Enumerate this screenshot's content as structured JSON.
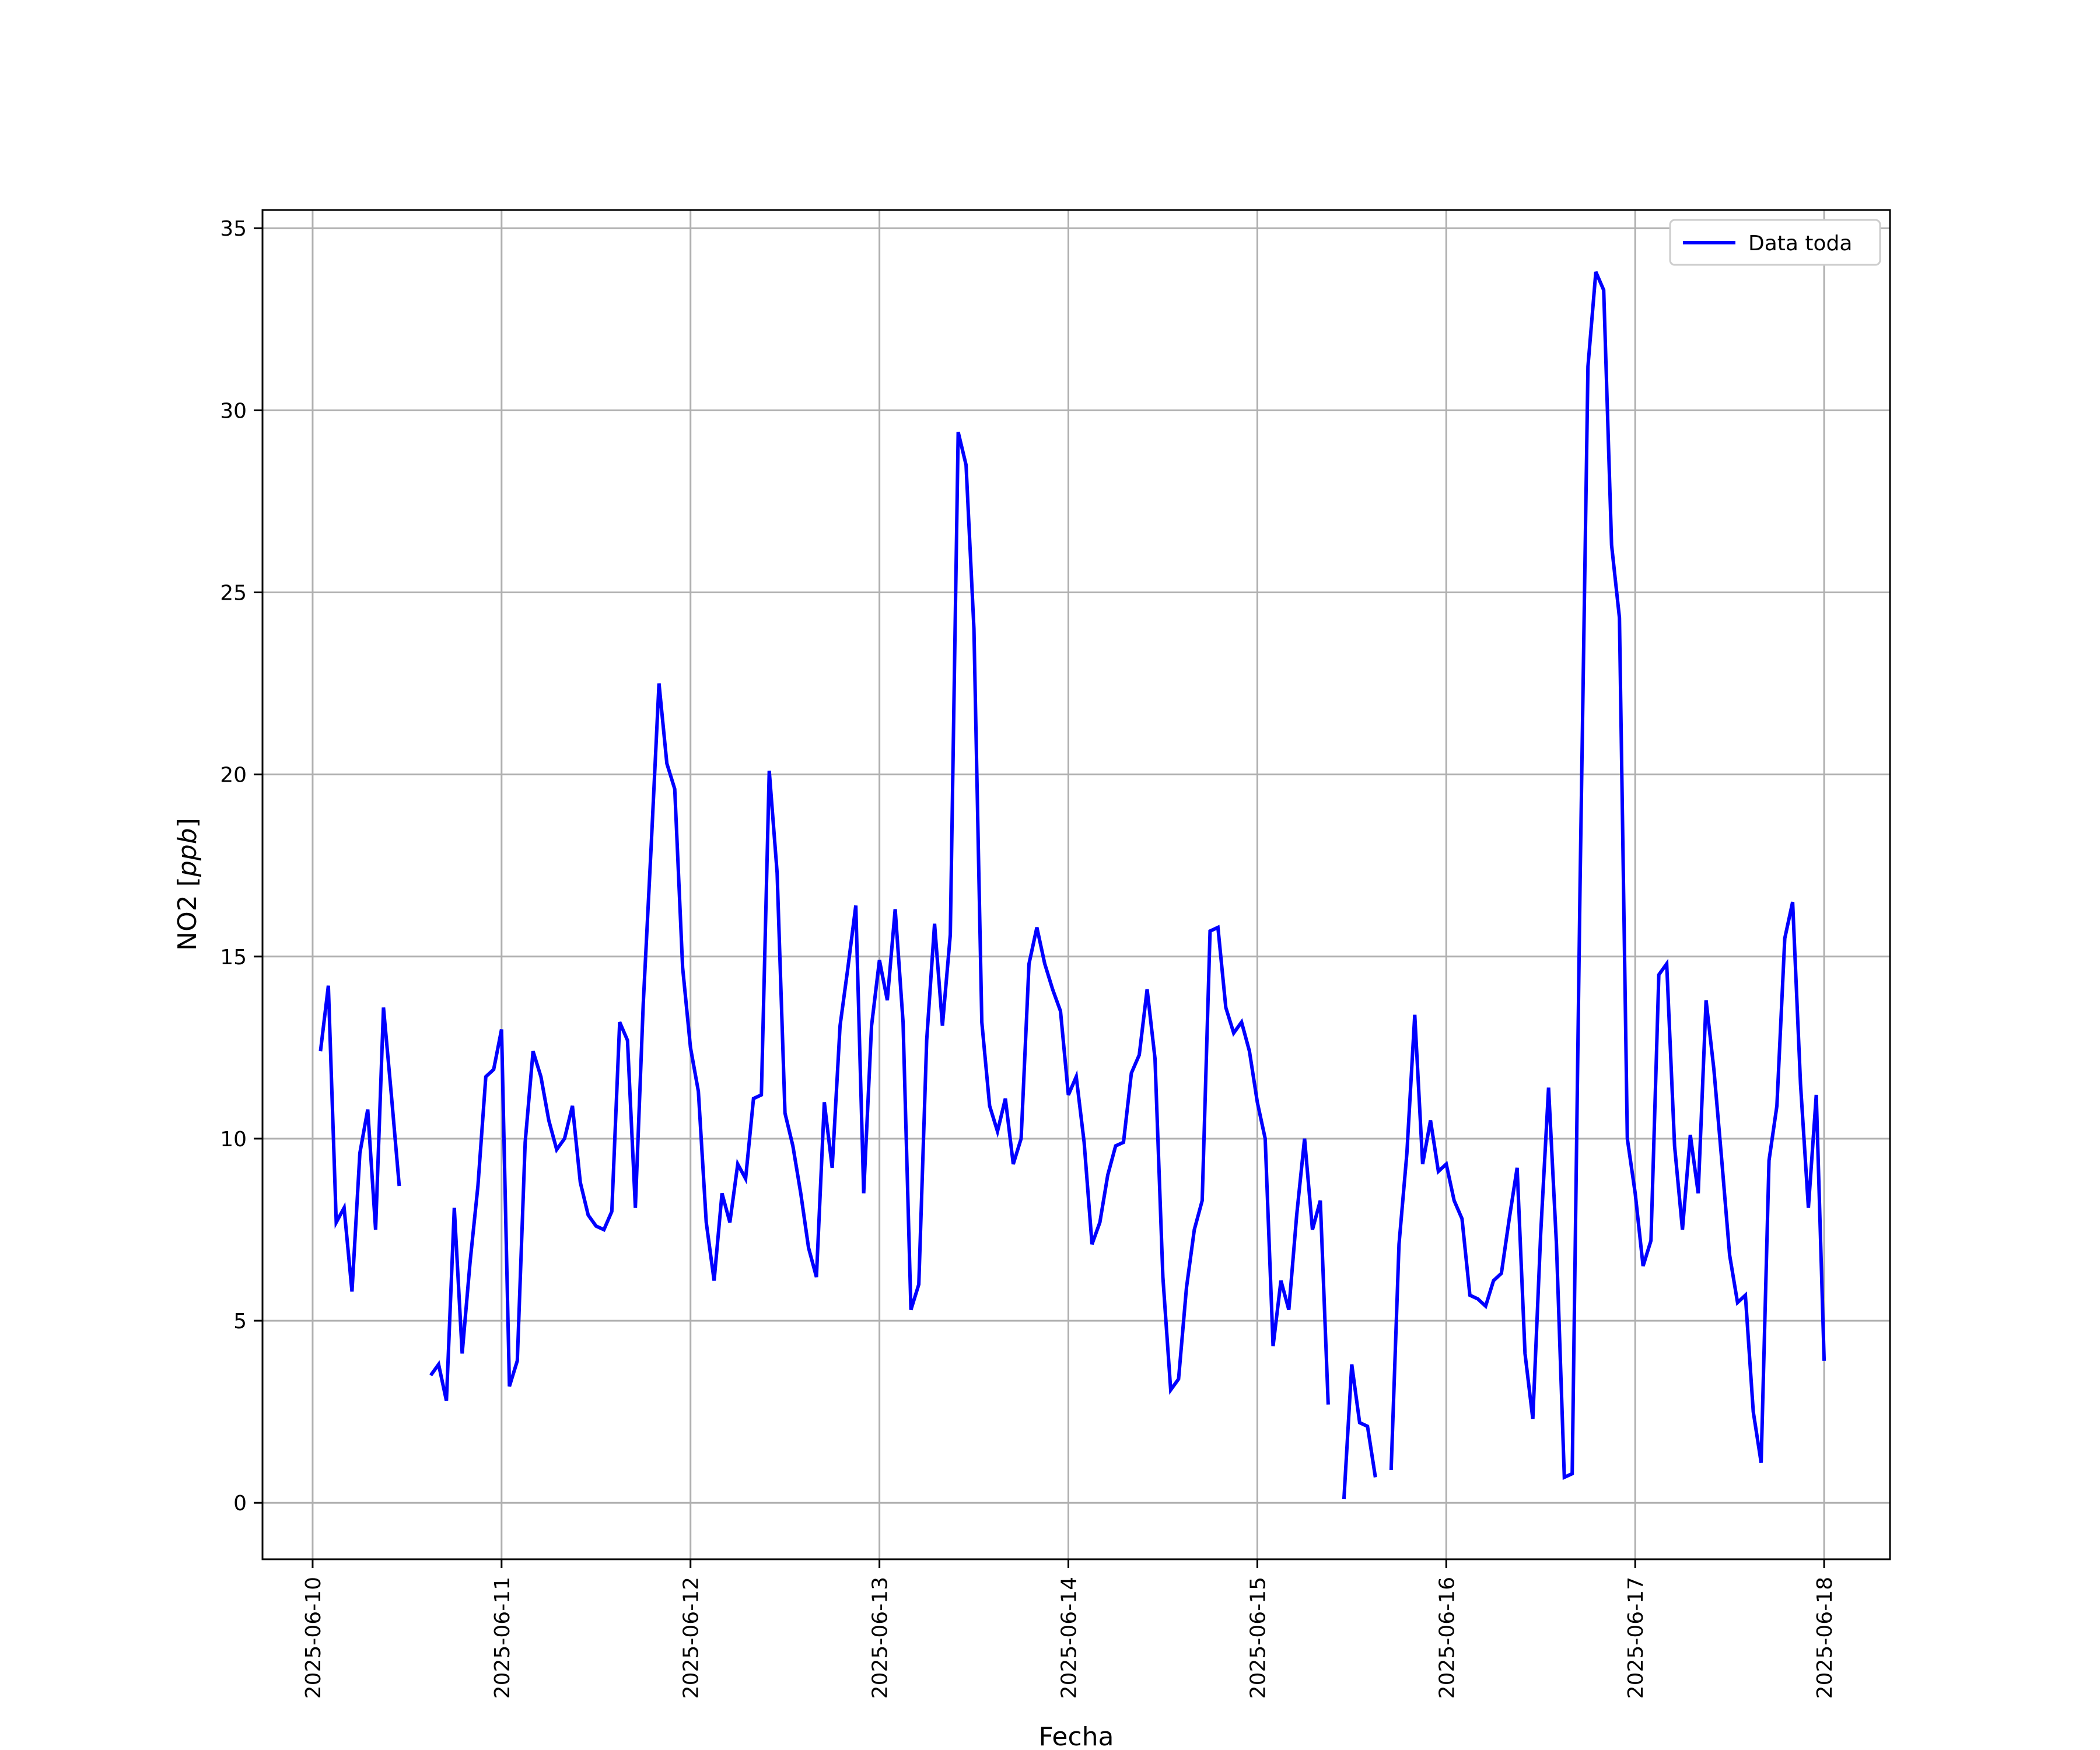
{
  "chart_data": {
    "type": "line",
    "title": "",
    "xlabel": "Fecha",
    "ylabel": "NO2 [ppb]",
    "ylabel_prefix": "NO2 [",
    "ylabel_unit": "ppb",
    "ylabel_suffix": "]",
    "xlim": [
      "2025-06-09T17:38",
      "2025-06-18T08:22"
    ],
    "ylim": [
      -1.55,
      35.5
    ],
    "grid": true,
    "legend_position": "upper-right",
    "x_ticks": [
      "2025-06-10",
      "2025-06-11",
      "2025-06-12",
      "2025-06-13",
      "2025-06-14",
      "2025-06-15",
      "2025-06-16",
      "2025-06-17",
      "2025-06-18"
    ],
    "y_ticks": [
      0,
      5,
      10,
      15,
      20,
      25,
      30,
      35
    ],
    "y_tick_labels": [
      "0",
      "5",
      "10",
      "15",
      "20",
      "25",
      "30",
      "35"
    ],
    "colors": {
      "series": "#0000ff",
      "grid": "#b0b0b0",
      "axes": "#000000"
    },
    "series": [
      {
        "name": "Data toda",
        "color": "#0000ff",
        "points": [
          [
            "2025-06-10T01:00",
            12.4
          ],
          [
            "2025-06-10T02:00",
            14.2
          ],
          [
            "2025-06-10T03:00",
            7.7
          ],
          [
            "2025-06-10T04:00",
            8.1
          ],
          [
            "2025-06-10T05:00",
            5.8
          ],
          [
            "2025-06-10T06:00",
            9.6
          ],
          [
            "2025-06-10T07:00",
            10.8
          ],
          [
            "2025-06-10T08:00",
            7.5
          ],
          [
            "2025-06-10T09:00",
            13.6
          ],
          [
            "2025-06-10T10:00",
            11.2
          ],
          [
            "2025-06-10T11:00",
            8.7
          ],
          [
            "2025-06-10T12:00",
            null
          ],
          [
            "2025-06-10T13:00",
            null
          ],
          [
            "2025-06-10T14:00",
            null
          ],
          [
            "2025-06-10T15:00",
            3.5
          ],
          [
            "2025-06-10T16:00",
            3.8
          ],
          [
            "2025-06-10T17:00",
            2.8
          ],
          [
            "2025-06-10T18:00",
            8.1
          ],
          [
            "2025-06-10T19:00",
            4.1
          ],
          [
            "2025-06-10T20:00",
            6.6
          ],
          [
            "2025-06-10T21:00",
            8.7
          ],
          [
            "2025-06-10T22:00",
            11.7
          ],
          [
            "2025-06-10T23:00",
            11.9
          ],
          [
            "2025-06-11T00:00",
            13.0
          ],
          [
            "2025-06-11T01:00",
            3.2
          ],
          [
            "2025-06-11T02:00",
            3.9
          ],
          [
            "2025-06-11T03:00",
            9.9
          ],
          [
            "2025-06-11T04:00",
            12.4
          ],
          [
            "2025-06-11T05:00",
            11.7
          ],
          [
            "2025-06-11T06:00",
            10.5
          ],
          [
            "2025-06-11T07:00",
            9.7
          ],
          [
            "2025-06-11T08:00",
            10.0
          ],
          [
            "2025-06-11T09:00",
            10.9
          ],
          [
            "2025-06-11T10:00",
            8.8
          ],
          [
            "2025-06-11T11:00",
            7.9
          ],
          [
            "2025-06-11T12:00",
            7.6
          ],
          [
            "2025-06-11T13:00",
            7.5
          ],
          [
            "2025-06-11T14:00",
            8.0
          ],
          [
            "2025-06-11T15:00",
            13.2
          ],
          [
            "2025-06-11T16:00",
            12.7
          ],
          [
            "2025-06-11T17:00",
            8.1
          ],
          [
            "2025-06-11T18:00",
            13.7
          ],
          [
            "2025-06-11T19:00",
            18.0
          ],
          [
            "2025-06-11T20:00",
            22.5
          ],
          [
            "2025-06-11T21:00",
            20.3
          ],
          [
            "2025-06-11T22:00",
            19.6
          ],
          [
            "2025-06-11T23:00",
            14.7
          ],
          [
            "2025-06-12T00:00",
            12.5
          ],
          [
            "2025-06-12T01:00",
            11.3
          ],
          [
            "2025-06-12T02:00",
            7.7
          ],
          [
            "2025-06-12T03:00",
            6.1
          ],
          [
            "2025-06-12T04:00",
            8.5
          ],
          [
            "2025-06-12T05:00",
            7.7
          ],
          [
            "2025-06-12T06:00",
            9.3
          ],
          [
            "2025-06-12T07:00",
            8.9
          ],
          [
            "2025-06-12T08:00",
            11.1
          ],
          [
            "2025-06-12T09:00",
            11.2
          ],
          [
            "2025-06-12T10:00",
            20.1
          ],
          [
            "2025-06-12T11:00",
            17.3
          ],
          [
            "2025-06-12T12:00",
            10.7
          ],
          [
            "2025-06-12T13:00",
            9.8
          ],
          [
            "2025-06-12T14:00",
            8.5
          ],
          [
            "2025-06-12T15:00",
            7.0
          ],
          [
            "2025-06-12T16:00",
            6.2
          ],
          [
            "2025-06-12T17:00",
            11.0
          ],
          [
            "2025-06-12T18:00",
            9.2
          ],
          [
            "2025-06-12T19:00",
            13.1
          ],
          [
            "2025-06-12T20:00",
            14.7
          ],
          [
            "2025-06-12T21:00",
            16.4
          ],
          [
            "2025-06-12T22:00",
            8.5
          ],
          [
            "2025-06-12T23:00",
            13.1
          ],
          [
            "2025-06-13T00:00",
            14.9
          ],
          [
            "2025-06-13T01:00",
            13.8
          ],
          [
            "2025-06-13T02:00",
            16.3
          ],
          [
            "2025-06-13T03:00",
            13.2
          ],
          [
            "2025-06-13T04:00",
            5.3
          ],
          [
            "2025-06-13T05:00",
            6.0
          ],
          [
            "2025-06-13T06:00",
            12.7
          ],
          [
            "2025-06-13T07:00",
            15.9
          ],
          [
            "2025-06-13T08:00",
            13.1
          ],
          [
            "2025-06-13T09:00",
            15.6
          ],
          [
            "2025-06-13T10:00",
            29.4
          ],
          [
            "2025-06-13T11:00",
            28.5
          ],
          [
            "2025-06-13T12:00",
            24.0
          ],
          [
            "2025-06-13T13:00",
            13.2
          ],
          [
            "2025-06-13T14:00",
            10.9
          ],
          [
            "2025-06-13T15:00",
            10.2
          ],
          [
            "2025-06-13T16:00",
            11.1
          ],
          [
            "2025-06-13T17:00",
            9.3
          ],
          [
            "2025-06-13T18:00",
            10.0
          ],
          [
            "2025-06-13T19:00",
            14.8
          ],
          [
            "2025-06-13T20:00",
            15.8
          ],
          [
            "2025-06-13T21:00",
            14.8
          ],
          [
            "2025-06-13T22:00",
            14.1
          ],
          [
            "2025-06-13T23:00",
            13.5
          ],
          [
            "2025-06-14T00:00",
            11.2
          ],
          [
            "2025-06-14T01:00",
            11.7
          ],
          [
            "2025-06-14T02:00",
            9.9
          ],
          [
            "2025-06-14T03:00",
            7.1
          ],
          [
            "2025-06-14T04:00",
            7.7
          ],
          [
            "2025-06-14T05:00",
            9.0
          ],
          [
            "2025-06-14T06:00",
            9.8
          ],
          [
            "2025-06-14T07:00",
            9.9
          ],
          [
            "2025-06-14T08:00",
            11.8
          ],
          [
            "2025-06-14T09:00",
            12.3
          ],
          [
            "2025-06-14T10:00",
            14.1
          ],
          [
            "2025-06-14T11:00",
            12.2
          ],
          [
            "2025-06-14T12:00",
            6.2
          ],
          [
            "2025-06-14T13:00",
            3.1
          ],
          [
            "2025-06-14T14:00",
            3.4
          ],
          [
            "2025-06-14T15:00",
            5.9
          ],
          [
            "2025-06-14T16:00",
            7.5
          ],
          [
            "2025-06-14T17:00",
            8.3
          ],
          [
            "2025-06-14T18:00",
            15.7
          ],
          [
            "2025-06-14T19:00",
            15.8
          ],
          [
            "2025-06-14T20:00",
            13.6
          ],
          [
            "2025-06-14T21:00",
            12.9
          ],
          [
            "2025-06-14T22:00",
            13.2
          ],
          [
            "2025-06-14T23:00",
            12.4
          ],
          [
            "2025-06-15T00:00",
            11.0
          ],
          [
            "2025-06-15T01:00",
            10.0
          ],
          [
            "2025-06-15T02:00",
            4.3
          ],
          [
            "2025-06-15T03:00",
            6.1
          ],
          [
            "2025-06-15T04:00",
            5.3
          ],
          [
            "2025-06-15T05:00",
            7.9
          ],
          [
            "2025-06-15T06:00",
            10.0
          ],
          [
            "2025-06-15T07:00",
            7.5
          ],
          [
            "2025-06-15T08:00",
            8.3
          ],
          [
            "2025-06-15T09:00",
            2.7
          ],
          [
            "2025-06-15T10:00",
            null
          ],
          [
            "2025-06-15T11:00",
            0.1
          ],
          [
            "2025-06-15T12:00",
            3.8
          ],
          [
            "2025-06-15T13:00",
            2.2
          ],
          [
            "2025-06-15T14:00",
            2.1
          ],
          [
            "2025-06-15T15:00",
            0.7
          ],
          [
            "2025-06-15T16:00",
            null
          ],
          [
            "2025-06-15T17:00",
            0.9
          ],
          [
            "2025-06-15T18:00",
            7.1
          ],
          [
            "2025-06-15T19:00",
            9.6
          ],
          [
            "2025-06-15T20:00",
            13.4
          ],
          [
            "2025-06-15T21:00",
            9.3
          ],
          [
            "2025-06-15T22:00",
            10.5
          ],
          [
            "2025-06-15T23:00",
            9.1
          ],
          [
            "2025-06-16T00:00",
            9.3
          ],
          [
            "2025-06-16T01:00",
            8.3
          ],
          [
            "2025-06-16T02:00",
            7.8
          ],
          [
            "2025-06-16T03:00",
            5.7
          ],
          [
            "2025-06-16T04:00",
            5.6
          ],
          [
            "2025-06-16T05:00",
            5.4
          ],
          [
            "2025-06-16T06:00",
            6.1
          ],
          [
            "2025-06-16T07:00",
            6.3
          ],
          [
            "2025-06-16T08:00",
            7.8
          ],
          [
            "2025-06-16T09:00",
            9.2
          ],
          [
            "2025-06-16T10:00",
            4.1
          ],
          [
            "2025-06-16T11:00",
            2.3
          ],
          [
            "2025-06-16T12:00",
            7.4
          ],
          [
            "2025-06-16T13:00",
            11.4
          ],
          [
            "2025-06-16T14:00",
            7.1
          ],
          [
            "2025-06-16T15:00",
            0.7
          ],
          [
            "2025-06-16T16:00",
            0.8
          ],
          [
            "2025-06-16T17:00",
            17.0
          ],
          [
            "2025-06-16T18:00",
            31.2
          ],
          [
            "2025-06-16T19:00",
            33.8
          ],
          [
            "2025-06-16T20:00",
            33.3
          ],
          [
            "2025-06-16T21:00",
            26.3
          ],
          [
            "2025-06-16T22:00",
            24.3
          ],
          [
            "2025-06-16T23:00",
            10.0
          ],
          [
            "2025-06-17T00:00",
            8.5
          ],
          [
            "2025-06-17T01:00",
            6.5
          ],
          [
            "2025-06-17T02:00",
            7.2
          ],
          [
            "2025-06-17T03:00",
            14.5
          ],
          [
            "2025-06-17T04:00",
            14.8
          ],
          [
            "2025-06-17T05:00",
            9.8
          ],
          [
            "2025-06-17T06:00",
            7.5
          ],
          [
            "2025-06-17T07:00",
            10.1
          ],
          [
            "2025-06-17T08:00",
            8.5
          ],
          [
            "2025-06-17T09:00",
            13.8
          ],
          [
            "2025-06-17T10:00",
            11.9
          ],
          [
            "2025-06-17T11:00",
            9.4
          ],
          [
            "2025-06-17T12:00",
            6.8
          ],
          [
            "2025-06-17T13:00",
            5.5
          ],
          [
            "2025-06-17T14:00",
            5.7
          ],
          [
            "2025-06-17T15:00",
            2.5
          ],
          [
            "2025-06-17T16:00",
            1.1
          ],
          [
            "2025-06-17T17:00",
            9.4
          ],
          [
            "2025-06-17T18:00",
            10.9
          ],
          [
            "2025-06-17T19:00",
            15.5
          ],
          [
            "2025-06-17T20:00",
            16.5
          ],
          [
            "2025-06-17T21:00",
            11.5
          ],
          [
            "2025-06-17T22:00",
            8.1
          ],
          [
            "2025-06-17T23:00",
            11.2
          ],
          [
            "2025-06-18T00:00",
            3.9
          ]
        ]
      }
    ]
  }
}
